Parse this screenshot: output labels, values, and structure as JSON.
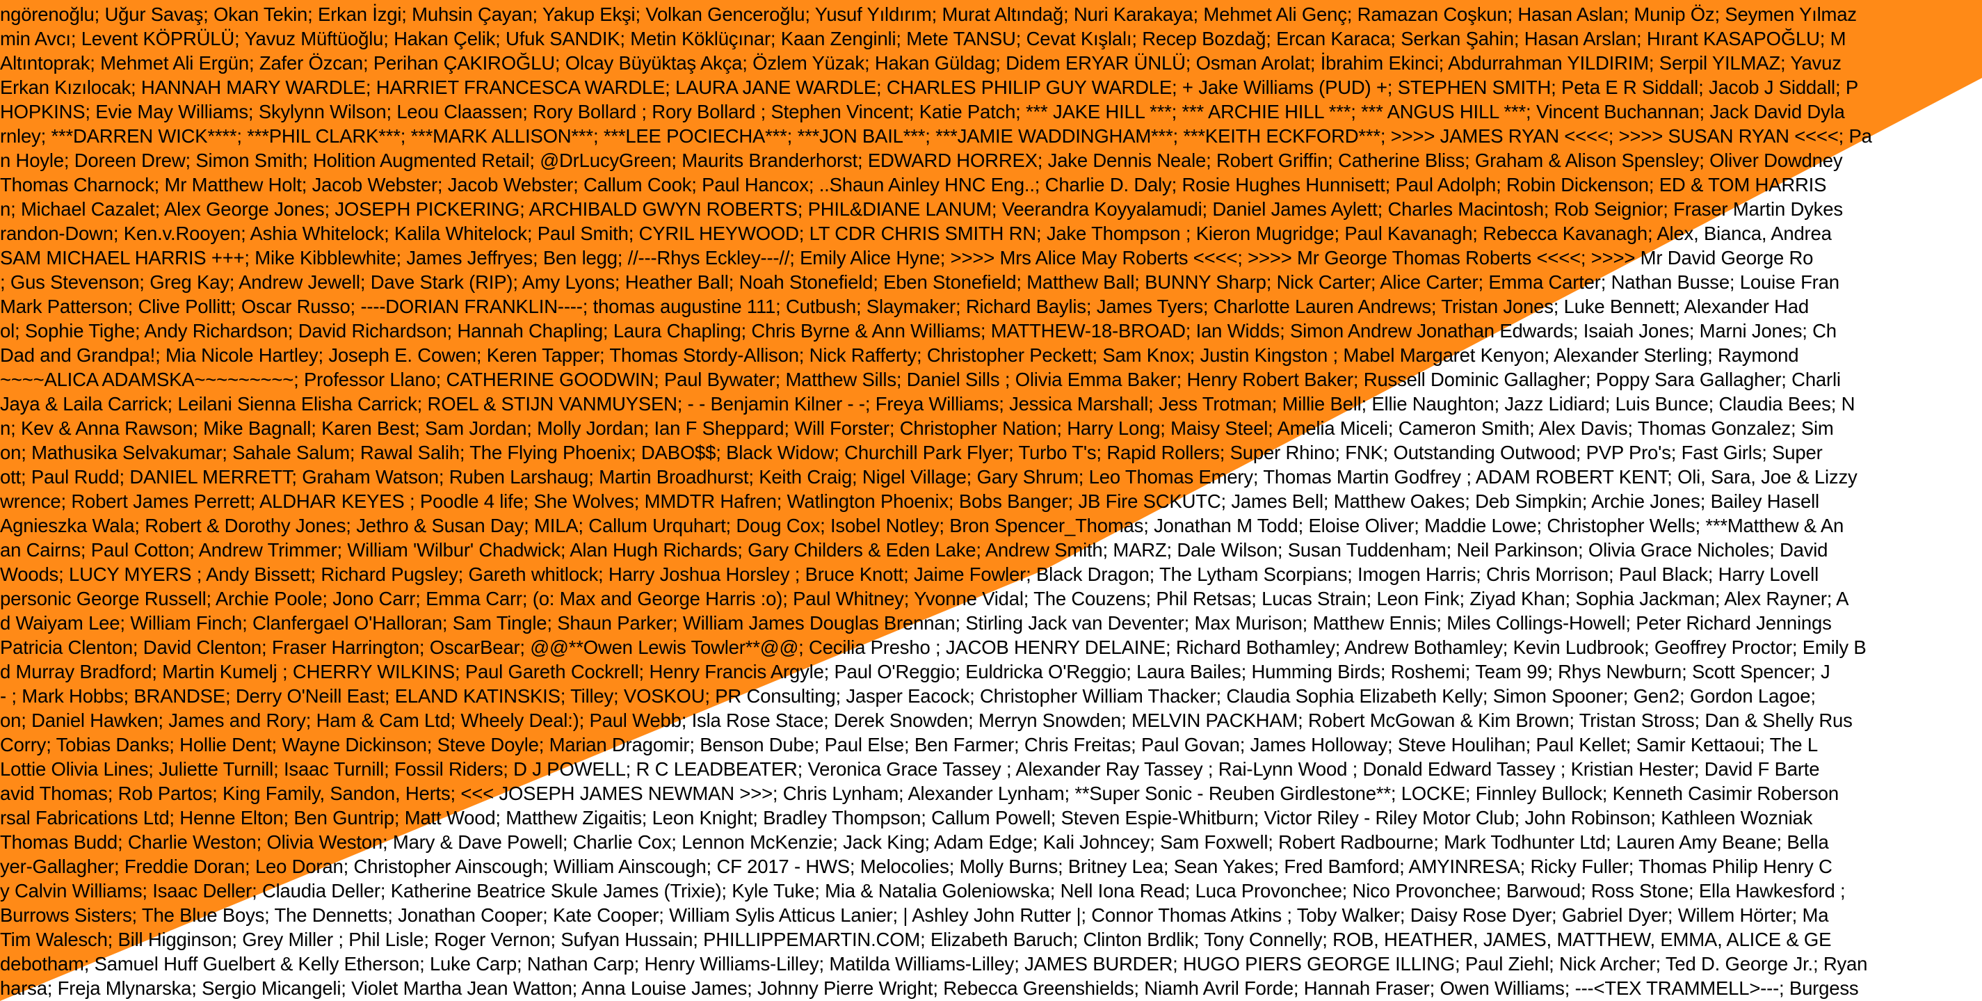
{
  "colors": {
    "background": "#ffffff",
    "band": "#ff8a17",
    "text": "#000000"
  },
  "name_lines": [
    "ngöreno&#287;lu; U&#287;ur Sava&#351;; Okan Tekin; Erkan &#304;zgi; Muhsin Çayan; Yakup Ek&#351;i; Volkan Gencero&#287;lu; Yusuf Y&#305;ld&#305;r&#305;m; Murat Alt&#305;nda&#287;; Nuri Karakaya; Mehmet Ali Genç; Ramazan Co&#351;kun; Hasan Aslan; Munip Öz; Seymen Y&#305;lmaz",
    "min Avc&#305;; Levent KÖPRÜLÜ; Yavuz Müftüo&#287;lu; Hakan Çelik; Ufuk SANDIK; Metin Köklüç&#305;nar; Kaan Zenginli; Mete TANSU; Cevat K&#305;&#351;lal&#305;; Recep Bozda&#287;; Ercan Karaca; Serkan &#350;ahin; Hasan Arslan; H&#305;rant KASAPO&#286;LU; M",
    "Alt&#305;ntoprak; Mehmet Ali Ergün; Zafer Özcan; Perihan ÇAKIRO&#286;LU; Olcay Büyükta&#351; Akça; Özlem Yüzak; Hakan Güldag; Didem ERYAR ÜNLÜ; Osman Arolat; &#304;brahim Ekinci; Abdurrahman YILDIRIM; Serpil YILMAZ; Yavuz",
    "Erkan K&#305;z&#305;locak; HANNAH MARY WARDLE; HARRIET FRANCESCA WARDLE; LAURA JANE WARDLE; CHARLES PHILIP GUY WARDLE; + Jake Williams (PUD) +; STEPHEN SMITH; Peta E R Siddall; Jacob J Siddall; P",
    "HOPKINS; Evie May Williams; Skylynn  Wilson; Leou Claassen; Rory Bollard ; Rory Bollard ; Stephen Vincent; Katie Patch; *** JAKE HILL ***; *** ARCHIE HILL ***; *** ANGUS HILL ***; Vincent Buchannan; Jack David Dyla",
    "rnley; ***DARREN WICK****; ***PHIL CLARK***; ***MARK ALLISON***; ***LEE POCIECHA***; ***JON BAIL***; ***JAMIE WADDINGHAM***; ***KEITH ECKFORD***; &gt;&gt;&gt;&gt; JAMES RYAN &lt;&lt;&lt;&lt;; &gt;&gt;&gt;&gt; SUSAN RYAN &lt;&lt;&lt;&lt;; Pa",
    "n Hoyle; Doreen Drew; Simon Smith; Holition Augmented Retail; @DrLucyGreen; Maurits Branderhorst; EDWARD HORREX; Jake Dennis Neale; Robert Griffin; Catherine Bliss; Graham &amp; Alison Spensley; Oliver Dowdney",
    "Thomas Charnock; Mr Matthew Holt; Jacob Webster; Jacob Webster; Callum Cook; Paul Hancox; ..Shaun Ainley HNC  Eng..; Charlie D. Daly; Rosie Hughes Hunnisett; Paul Adolph; Robin Dickenson; ED &amp; TOM HARRIS",
    "n; Michael Cazalet; Alex George Jones; JOSEPH PICKERING; ARCHIBALD GWYN ROBERTS; PHIL&amp;DIANE LANUM; Veerandra Koyyalamudi; Daniel James Aylett; Charles Macintosh; Rob Seignior; Fraser Martin Dykes",
    "randon-Down; Ken.v.Rooyen; Ashia Whitelock; Kalila Whitelock; Paul Smith; CYRIL HEYWOOD; LT CDR CHRIS SMITH RN; Jake Thompson ; Kieron Mugridge; Paul Kavanagh; Rebecca Kavanagh; Alex, Bianca, Andrea",
    "SAM MICHAEL HARRIS +++; Mike Kibblewhite; James Jeffryes; Ben legg; //---Rhys Eckley---//; Emily Alice Hyne; &gt;&gt;&gt;&gt; Mrs Alice May Roberts &lt;&lt;&lt;&lt;; &gt;&gt;&gt;&gt; Mr George Thomas Roberts &lt;&lt;&lt;&lt;; &gt;&gt;&gt;&gt; Mr David George Ro",
    "; Gus Stevenson; Greg Kay; Andrew Jewell; Dave Stark (RIP); Amy Lyons; Heather Ball; Noah Stonefield; Eben Stonefield; Matthew Ball; BUNNY Sharp; Nick Carter; Alice Carter; Emma Carter; Nathan Busse; Louise Fran",
    "Mark Patterson; Clive Pollitt; Oscar Russo; ----DORIAN FRANKLIN----; thomas augustine 111; Cutbush; Slaymaker; Richard Baylis; James Tyers; Charlotte Lauren Andrews; Tristan Jones; Luke Bennett; Alexander Had",
    "ol; Sophie Tighe; Andy Richardson; David Richardson; Hannah Chapling; Laura Chapling; Chris Byrne &amp; Ann Williams; MATTHEW-18-BROAD; Ian Widds; Simon Andrew Jonathan Edwards; Isaiah Jones; Marni Jones; Ch",
    "Dad and Grandpa!; Mia Nicole Hartley; Joseph E. Cowen; Keren Tapper; Thomas Stordy-Allison; Nick Rafferty; Christopher Peckett; Sam Knox; Justin Kingston ; Mabel Margaret Kenyon; Alexander Sterling; Raymond",
    "~~~~ALICA ADAMSKA~~~~~~~~~; Professor Llano; CATHERINE  GOODWIN; Paul Bywater; Matthew Sills; Daniel Sills ; Olivia Emma Baker; Henry Robert Baker; Russell Dominic Gallagher; Poppy Sara Gallagher; Charli",
    "Jaya &amp; Laila Carrick; Leilani Sienna Elisha Carrick; ROEL &amp; STIJN VANMUYSEN; - - Benjamin Kilner - -; Freya Williams; Jessica Marshall; Jess Trotman; Millie Bell; Ellie Naughton; Jazz Lidiard; Luis Bunce; Claudia Bees; N",
    "n; Kev &amp; Anna Rawson; Mike Bagnall; Karen Best; Sam Jordan; Molly Jordan; Ian F Sheppard; Will Forster; Christopher Nation; Harry Long; Maisy Steel; Amelia Miceli; Cameron Smith; Alex Davis; Thomas Gonzalez; Sim",
    "on; Mathusika Selvakumar; Sahale Salum; Rawal Salih; The Flying Phoenix; DABO$$; Black Widow; Churchill Park Flyer; Turbo T's; Rapid Rollers; Super Rhino; FNK; Outstanding Outwood; PVP Pro's; Fast Girls; Super",
    "ott; Paul Rudd; DANIEL   MERRETT; Graham Watson; Ruben Larshaug; Martin Broadhurst; Keith Craig; Nigel Village; Gary Shrum; Leo Thomas Emery; Thomas Martin Godfrey ; ADAM ROBERT KENT; Oli, Sara, Joe &amp; Lizzy",
    "wrence; Robert James Perrett;   ALDHAR KEYES  ; Poodle 4 life; She Wolves; MMDTR Hafren; Watlington Phoenix; Bobs Banger; JB Fire SCKUTC; James Bell; Matthew Oakes; Deb Simpkin; Archie Jones; Bailey Hasell",
    "Agnieszka Wala; Robert &amp; Dorothy Jones; Jethro &amp; Susan Day; MILA; Callum Urquhart; Doug Cox; Isobel Notley; Bron Spencer_Thomas; Jonathan M Todd; Eloise Oliver; Maddie Lowe; Christopher Wells; ***Matthew &amp; An",
    "an Cairns; Paul Cotton; Andrew Trimmer; William 'Wilbur' Chadwick; Alan Hugh Richards; Gary Childers &amp; Eden Lake; Andrew Smith; MARZ; Dale Wilson; Susan Tuddenham; Neil Parkinson; Olivia Grace Nicholes; David",
    "Woods; LUCY MYERS ; Andy Bissett; Richard Pugsley; Gareth whitlock; Harry Joshua Horsley ; Bruce Knott; Jaime Fowler; Black Dragon; The Lytham Scorpians; Imogen Harris; Chris Morrison; Paul Black; Harry Lovell",
    "personic George Russell; Archie Poole; Jono Carr; Emma Carr; (o: Max and George Harris :o); Paul Whitney; Yvonne Vidal; The Couzens; Phil Retsas; Lucas Strain; Leon Fink; Ziyad Khan; Sophia Jackman; Alex Rayner; A",
    "d Waiyam Lee; William Finch; Clanfergael O'Halloran; Sam Tingle; Shaun Parker; William James Douglas Brennan; Stirling Jack van Deventer; Max Murison; Matthew Ennis; Miles Collings-Howell; Peter Richard Jennings",
    "Patricia Clenton; David Clenton; Fraser Harrington; OscarBear; @@**Owen Lewis Towler**@@; Cecilia Presho ; JACOB HENRY DELAINE; Richard Bothamley; Andrew Bothamley; Kevin Ludbrook; Geoffrey Proctor; Emily B",
    "d Murray Bradford; Martin Kumelj ; CHERRY WILKINS; Paul Gareth Cockrell; Henry Francis Argyle; Paul O'Reggio; Euldricka O'Reggio; Laura Bailes; Humming Birds; Roshemi; Team 99; Rhys Newburn; Scott Spencer; J",
    "- ; Mark Hobbs; BRANDSE; Derry O'Neill East; ELAND KATINSKIS; Tilley; VOSKOU; PR Consulting; Jasper Eacock; Christopher William Thacker; Claudia Sophia Elizabeth Kelly; Simon Spooner; Gen2; Gordon Lagoe;",
    "on; Daniel Hawken; James and Rory; Ham &amp; Cam Ltd; Wheely Deal:); Paul Webb; Isla Rose Stace; Derek Snowden; Merryn Snowden; MELVIN PACKHAM; Robert McGowan &amp; Kim Brown; Tristan Stross; Dan &amp; Shelly Rus",
    "Corry; Tobias Danks; Hollie Dent; Wayne Dickinson; Steve Doyle; Marian Dragomir; Benson Dube; Paul Else; Ben Farmer; Chris Freitas; Paul Govan; James Holloway; Steve Houlihan; Paul  Kellet; Samir Kettaoui; The L",
    "Lottie Olivia Lines; Juliette Turnill; Isaac Turnill; Fossil Riders; D J POWELL; R C LEADBEATER;  Veronica Grace Tassey ;  Alexander Ray Tassey ;  Rai-Lynn Wood ;  Donald Edward Tassey ; Kristian Hester; David F Barte",
    "avid Thomas; Rob Partos; King Family, Sandon, Herts; &lt;&lt;&lt; JOSEPH JAMES NEWMAN &gt;&gt;&gt;; Chris Lynham; Alexander Lynham; **Super Sonic - Reuben Girdlestone**; LOCKE; Finnley Bullock; Kenneth Casimir Roberson",
    "rsal Fabrications Ltd; Henne Elton; Ben Guntrip; Matt Wood; Matthew Zigaitis; Leon Knight; Bradley Thompson; Callum Powell; Steven Espie-Whitburn; Victor Riley - Riley Motor Club; John Robinson; Kathleen Wozniak",
    "Thomas Budd; Charlie Weston; Olivia Weston; Mary &amp; Dave Powell; Charlie Cox; Lennon McKenzie; Jack King; Adam Edge; Kali Johncey; Sam Foxwell; Robert Radbourne; Mark Todhunter Ltd; Lauren Amy Beane; Bella",
    "yer-Gallagher; Freddie Doran; Leo Doran; Christopher Ainscough; William Ainscough; CF 2017 - HWS; Melocolies; Molly Burns; Britney Lea; Sean Yakes; Fred Bamford; AMYINRESA; Ricky Fuller; Thomas Philip Henry C",
    "y Calvin Williams; Isaac Deller; Claudia Deller; Katherine Beatrice Skule James (Trixie); Kyle Tuke; Mia &amp; Natalia Goleniowska; Nell Iona Read; Luca Provonchee; Nico Provonchee; Barwoud; Ross Stone; Ella Hawkesford ;",
    "Burrows Sisters; The Blue Boys; The Dennetts; Jonathan Cooper; Kate Cooper; William Sylis Atticus Lanier; | Ashley John Rutter |; Connor Thomas Atkins ; Toby Walker; Daisy Rose Dyer; Gabriel  Dyer; Willem Hörter; Ma",
    "Tim Walesch; Bill Higginson; Grey Miller ; Phil Lisle; Roger Vernon; Sufyan Hussain; PHILLIPPEMARTIN.COM; Elizabeth Baruch; Clinton Brdlik; Tony Connelly; ROB, HEATHER, JAMES, MATTHEW, EMMA, ALICE &amp; GE",
    "debotham; Samuel Huff Guelbert &amp; Kelly Etherson; Luke Carp; Nathan Carp; Henry Williams-Lilley; Matilda Williams-Lilley; JAMES BURDER; HUGO PIERS GEORGE ILLING; Paul Ziehl; Nick Archer; Ted D. George Jr.; Ryan",
    "harsa; Freja Mlynarska; Sergio Micangeli; Violet Martha Jean Watton; Anna Louise James; Johnny Pierre Wright; Rebecca Greenshields; Niamh Avril Forde; Hannah Fraser; Owen Williams; ---&lt;TEX TRAMMELL&gt;---; Burgess"
  ]
}
